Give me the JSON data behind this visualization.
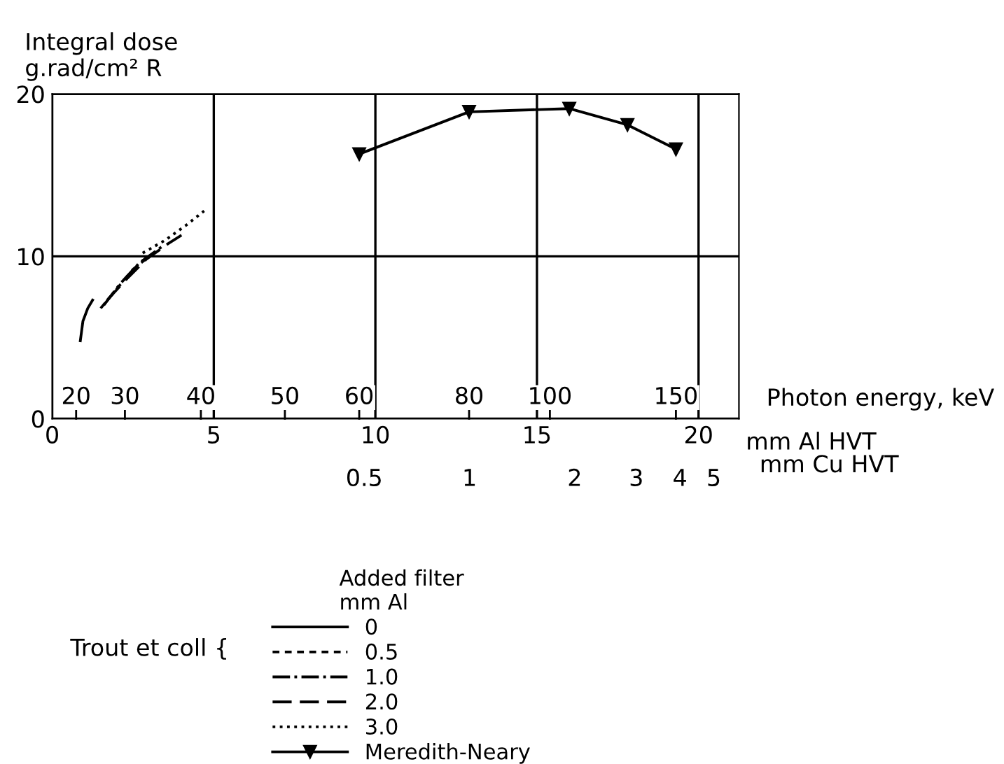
{
  "chart_data": {
    "type": "line",
    "ylabel": "Integral dose\ng.rad/cm² R",
    "xlabel": "mm Al HVT",
    "legend_title": "Added filter\nmm Al",
    "x2label": "mm Cu HVT",
    "x2lim": [
      0.064,
      5.9
    ],
    "x2ticks": [
      0.5,
      1,
      2,
      3,
      4,
      5
    ],
    "log": "x2",
    "annotations": [
      "Photon energy, keV",
      "Trout et coll {",
      {
        "text": "20",
        "x": 0.74,
        "y": 1.3
      },
      {
        "text": "30",
        "x": 2.25,
        "y": 1.3
      },
      {
        "text": "40",
        "x": 4.6,
        "y": 1.3
      },
      {
        "text": "50",
        "x": 7.2,
        "y": 1.3
      },
      {
        "text": "60",
        "x": 9.5,
        "y": 1.3
      },
      {
        "text": "80",
        "x": 12.9,
        "y": 1.3
      },
      {
        "text": "100",
        "x": 15.4,
        "y": 1.3
      },
      {
        "text": "150",
        "x": 19.3,
        "y": 1.3
      }
    ],
    "xlim": [
      0,
      21.25
    ],
    "ylim": [
      0,
      20
    ],
    "xticks": [
      0,
      5,
      10,
      15,
      20
    ],
    "yticks": [
      0,
      10,
      20
    ],
    "grid": true,
    "legend": "bottom",
    "series": [
      {
        "name": "0",
        "color": "#000000",
        "line_style": "solid",
        "x": [
          0.87,
          0.95,
          1.1,
          1.25
        ],
        "values": [
          4.8,
          6.0,
          6.8,
          7.3
        ]
      },
      {
        "name": "0.5",
        "color": "#000000",
        "line_style": "short_dashed",
        "x": [
          1.5,
          2.0,
          2.5,
          3.0
        ],
        "values": [
          6.8,
          8.0,
          9.2,
          10.0
        ]
      },
      {
        "name": "1.0",
        "color": "#000000",
        "line_style": "dashdot",
        "x": [
          1.6,
          2.1,
          2.7,
          3.4
        ],
        "values": [
          7.0,
          8.3,
          9.6,
          10.6
        ]
      },
      {
        "name": "2.0",
        "color": "#000000",
        "line_style": "dashed",
        "x": [
          1.7,
          2.3,
          2.9,
          3.6,
          4.0
        ],
        "values": [
          7.3,
          8.6,
          9.8,
          10.8,
          11.3
        ]
      },
      {
        "name": "3.0",
        "color": "#000000",
        "line_style": "dotted",
        "x": [
          2.8,
          3.5,
          4.2,
          4.7
        ],
        "values": [
          10.2,
          11.0,
          12.0,
          12.8
        ]
      },
      {
        "name": "Meredith-Neary",
        "color": "#000000",
        "line_style": "solid",
        "marker": "triangle",
        "x": [
          9.5,
          12.9,
          16.0,
          17.8,
          19.3
        ],
        "values": [
          16.3,
          18.9,
          19.1,
          18.1,
          16.6
        ]
      }
    ]
  }
}
